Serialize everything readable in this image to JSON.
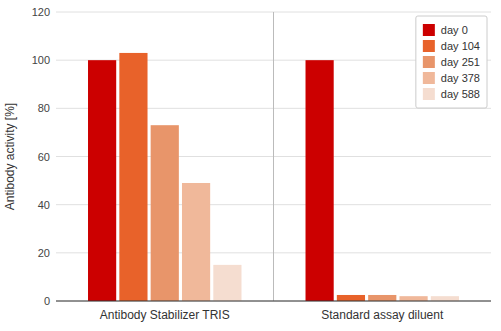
{
  "chart_data": {
    "type": "bar",
    "categories": [
      "Antibody Stabilizer TRIS",
      "Standard assay diluent"
    ],
    "series": [
      {
        "name": "day 0",
        "color": "#cc0000",
        "values": [
          100,
          100
        ]
      },
      {
        "name": "day 104",
        "color": "#e8622a",
        "values": [
          103,
          2.5
        ]
      },
      {
        "name": "day 251",
        "color": "#e8956a",
        "values": [
          73,
          2.5
        ]
      },
      {
        "name": "day 378",
        "color": "#f0b89a",
        "values": [
          49,
          2.0
        ]
      },
      {
        "name": "day 588",
        "color": "#f5ddd0",
        "values": [
          15,
          2.0
        ]
      }
    ],
    "ylabel": "Antibody activity [%]",
    "ylim": [
      0,
      120
    ],
    "yticks": [
      0,
      20,
      40,
      60,
      80,
      100,
      120
    ],
    "grid": true,
    "legend": "upper right"
  }
}
